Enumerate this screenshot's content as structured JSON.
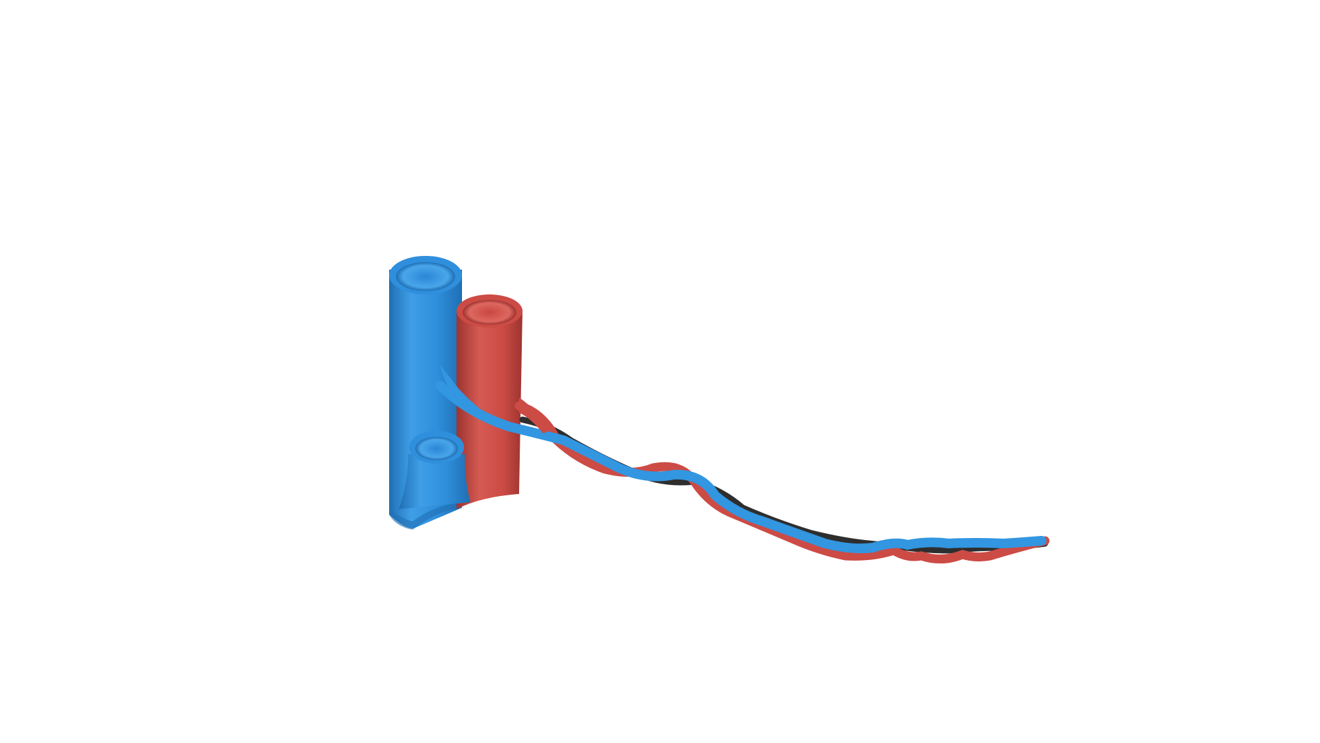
{
  "illustration": {
    "subject": "vessel-illustration",
    "colors": {
      "background": "#ffffff",
      "vein_light": "#5aaee8",
      "vein": "#2f8fdc",
      "vein_dark": "#1f6fb4",
      "artery_light": "#e06a60",
      "artery": "#cc4b45",
      "artery_dark": "#9d3430",
      "nerve": "#2e2e2e"
    }
  }
}
